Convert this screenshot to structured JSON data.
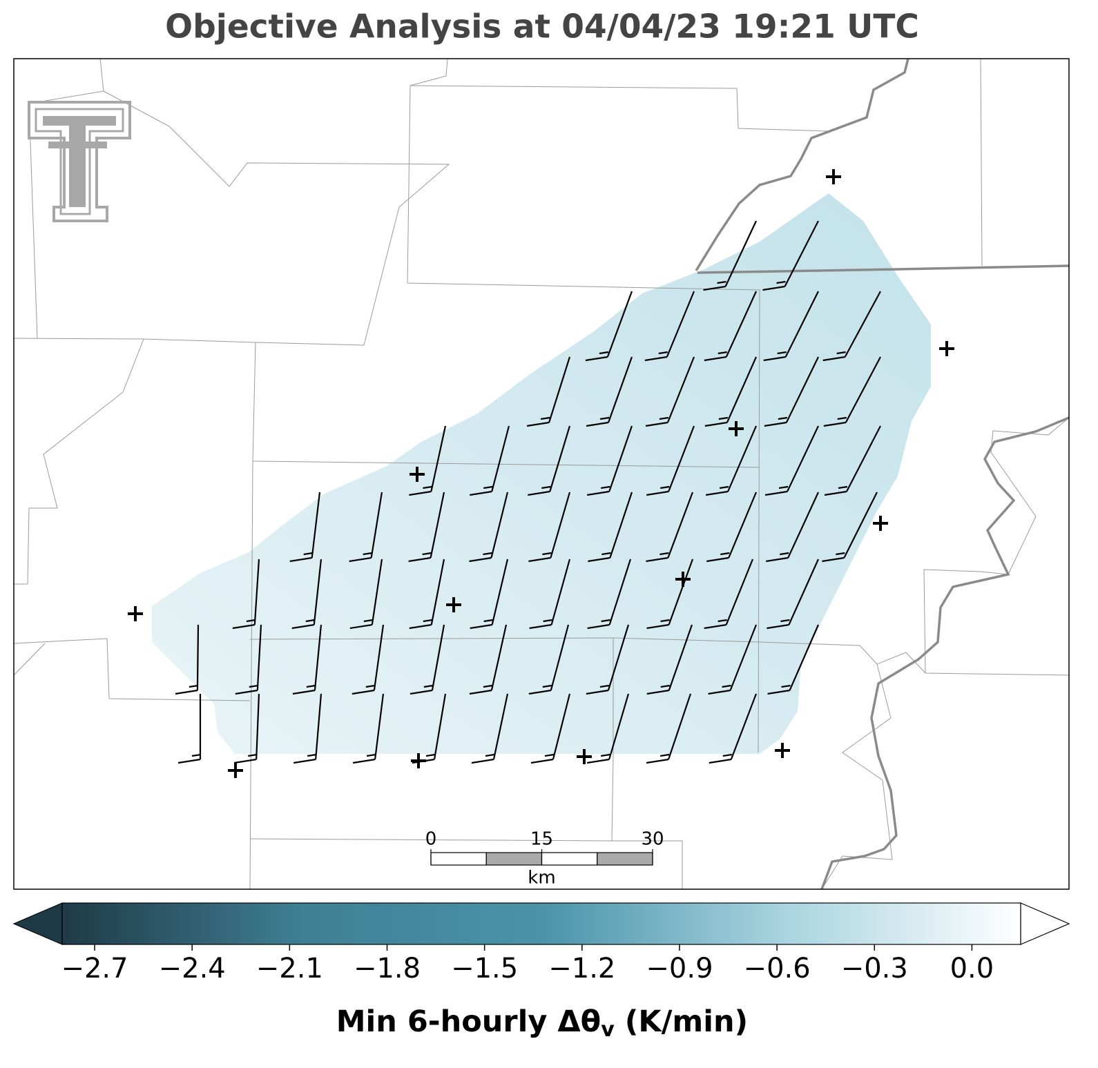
{
  "title": "Objective Analysis at 04/04/23 19:21 UTC",
  "scale_bar": {
    "ticks": [
      0,
      15,
      30
    ],
    "unit": "km"
  },
  "colorbar": {
    "range": [
      -2.8,
      0.15
    ],
    "colors": [
      "#1f3a47",
      "#3f7f93",
      "#4a93a9",
      "#a7d3df",
      "#ffffff"
    ],
    "ticks": [
      {
        "value": -2.7,
        "label": "−2.7"
      },
      {
        "value": -2.4,
        "label": "−2.4"
      },
      {
        "value": -2.1,
        "label": "−2.1"
      },
      {
        "value": -1.8,
        "label": "−1.8"
      },
      {
        "value": -1.5,
        "label": "−1.5"
      },
      {
        "value": -1.2,
        "label": "−1.2"
      },
      {
        "value": -0.9,
        "label": "−0.9"
      },
      {
        "value": -0.6,
        "label": "−0.6"
      },
      {
        "value": -0.3,
        "label": "−0.3"
      },
      {
        "value": 0.0,
        "label": "0.0"
      }
    ],
    "label": {
      "main": "Min 6-hourly Δθ",
      "sub": "v",
      "tail": " (K/min)"
    }
  }
}
